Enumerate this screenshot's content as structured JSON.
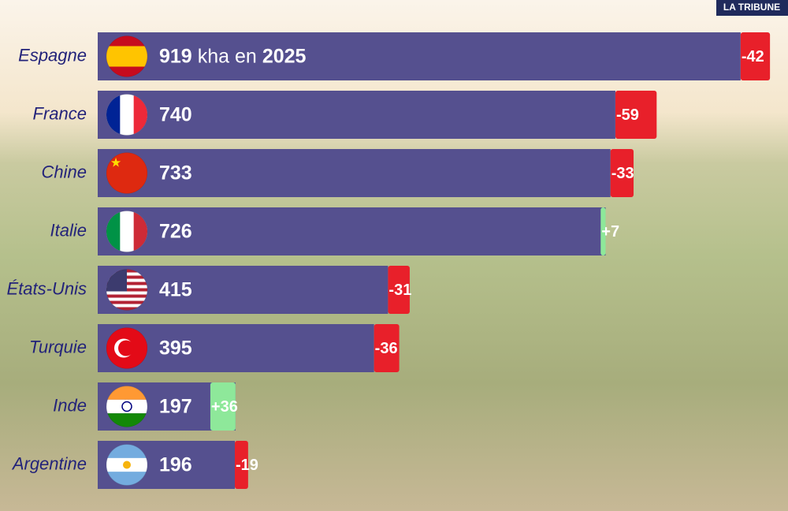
{
  "logo": "LA TRIBUNE",
  "chart_data": {
    "type": "bar",
    "categories": [
      "Espagne",
      "France",
      "Chine",
      "Italie",
      "États-Unis",
      "Turquie",
      "Inde",
      "Argentine"
    ],
    "values": [
      919,
      740,
      733,
      726,
      415,
      395,
      197,
      196
    ],
    "value_labels": [
      "919",
      "740",
      "733",
      "726",
      "415",
      "395",
      "197",
      "196"
    ],
    "first_label_suffix": {
      "unit": "kha",
      "connector": "en",
      "year": "2025"
    },
    "change_values": [
      -42,
      -59,
      -33,
      7,
      -31,
      -36,
      36,
      -19
    ],
    "change_labels": [
      "-42",
      "-59",
      "-33",
      "+7",
      "-31",
      "-36",
      "+36",
      "-19"
    ],
    "color": "#55508f",
    "decrease_color": "#e8202a",
    "increase_color": "#8ee89a",
    "xlim": [
      0,
      980
    ]
  }
}
